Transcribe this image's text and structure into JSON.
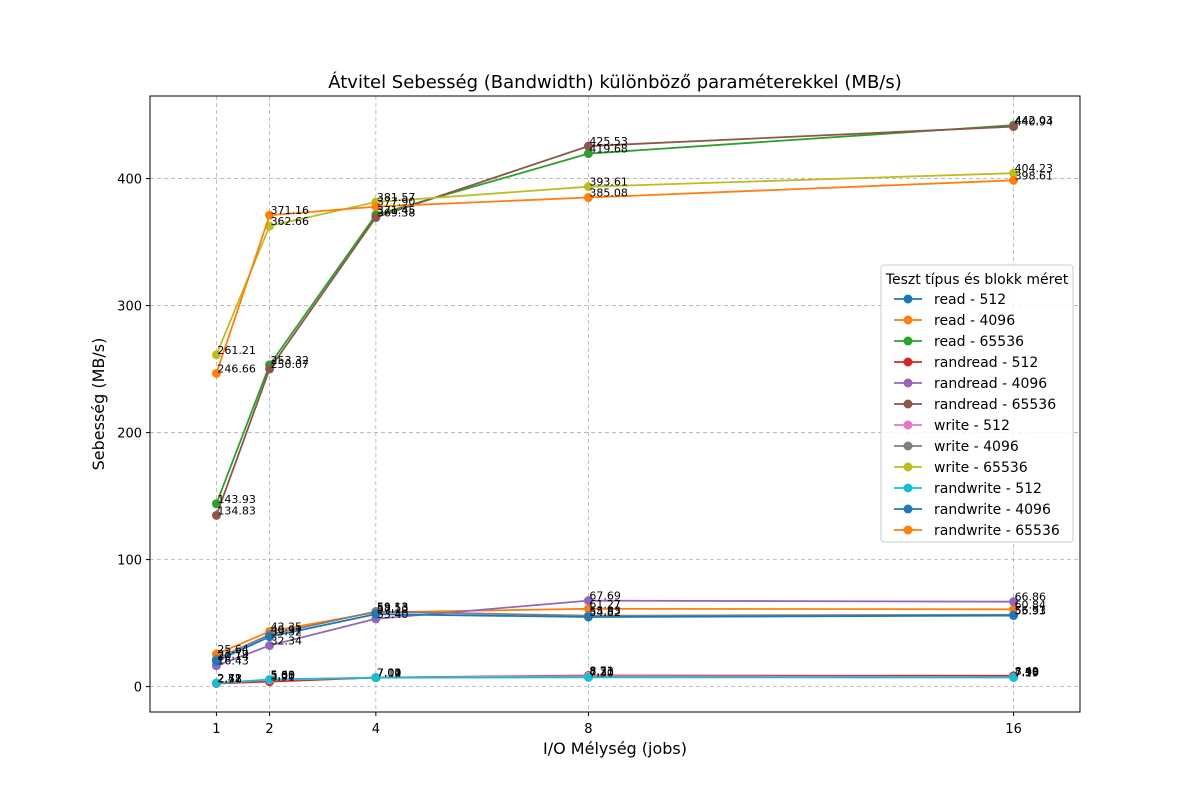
{
  "chart_data": {
    "type": "line",
    "title": "Átvitel Sebesség (Bandwidth) különböző paraméterekkel (MB/s)",
    "xlabel": "I/O Mélység (jobs)",
    "ylabel": "Sebesség (MB/s)",
    "x": [
      1,
      2,
      4,
      8,
      16
    ],
    "xticks": [
      "1",
      "2",
      "4",
      "8",
      "16"
    ],
    "xlim": [
      -0.25,
      17.25
    ],
    "ylim": [
      -20,
      465
    ],
    "yticks": [
      0,
      100,
      200,
      300,
      400
    ],
    "grid": true,
    "legend_title": "Teszt típus és blokk méret",
    "legend_placement": "center-right",
    "series": [
      {
        "name": "read - 512",
        "color": "#1f77b4",
        "values": [
          2.58,
          5.08,
          7.02,
          8.31,
          7.98
        ],
        "labels": [
          "2.58",
          "5.08",
          "7.02",
          "8.31",
          "7.98"
        ]
      },
      {
        "name": "read - 4096",
        "color": "#ff7f0e",
        "values": [
          25.64,
          43.35,
          58.53,
          61.27,
          60.84
        ],
        "labels": [
          "25.64",
          "43.35",
          "58.53",
          "61.27",
          "60.84"
        ]
      },
      {
        "name": "read - 65536",
        "color": "#2ca02c",
        "values": [
          143.93,
          253.32,
          371.45,
          419.68,
          442.03
        ],
        "labels": [
          "143.93",
          "253.32",
          "371.45",
          "419.68",
          "442.03"
        ]
      },
      {
        "name": "randread - 512",
        "color": "#d62728",
        "values": [
          2.47,
          3.91,
          7.11,
          8.71,
          8.49
        ],
        "labels": [
          "2.47",
          "3.91",
          "7.11",
          "8.71",
          "8.49"
        ]
      },
      {
        "name": "randread - 4096",
        "color": "#9467bd",
        "values": [
          16.43,
          32.34,
          53.4,
          67.69,
          66.86
        ],
        "labels": [
          "16.43",
          "32.34",
          "53.40",
          "67.69",
          "66.86"
        ]
      },
      {
        "name": "randread - 65536",
        "color": "#8c564b",
        "values": [
          134.83,
          250.07,
          369.38,
          425.53,
          440.94
        ],
        "labels": [
          "134.83",
          "250.07",
          "369.38",
          "425.53",
          "440.94"
        ]
      },
      {
        "name": "write - 512",
        "color": "#e377c2",
        "values": [
          2.72,
          5.33,
          7.04,
          8.23,
          7.5
        ],
        "labels": [
          "2.72",
          "5.33",
          "7.04",
          "8.23",
          "7.50"
        ]
      },
      {
        "name": "write - 4096",
        "color": "#7f7f7f",
        "values": [
          21.79,
          40.91,
          59.13,
          55.83,
          56.51
        ],
        "labels": [
          "21.79",
          "40.91",
          "59.13",
          "55.83",
          "56.51"
        ]
      },
      {
        "name": "write - 65536",
        "color": "#bcbd22",
        "values": [
          261.21,
          362.66,
          381.57,
          393.61,
          404.23
        ],
        "labels": [
          "261.21",
          "362.66",
          "381.57",
          "393.61",
          "404.23"
        ]
      },
      {
        "name": "randwrite - 512",
        "color": "#17becf",
        "values": [
          2.71,
          5.6,
          7.0,
          7.3,
          7.19
        ],
        "labels": [
          "2.71",
          "5.60",
          "7.00",
          "7.30",
          "7.19"
        ]
      },
      {
        "name": "randwrite - 4096",
        "color": "#1f77b4",
        "values": [
          20.14,
          39.32,
          57.1,
          54.82,
          55.93
        ],
        "labels": [
          "20.14",
          "39.32",
          "57.10",
          "54.82",
          "55.93"
        ]
      },
      {
        "name": "randwrite - 65536",
        "color": "#ff7f0e",
        "values": [
          246.66,
          371.16,
          377.9,
          385.08,
          398.61
        ],
        "labels": [
          "246.66",
          "371.16",
          "377.90",
          "385.08",
          "398.61"
        ]
      }
    ]
  }
}
